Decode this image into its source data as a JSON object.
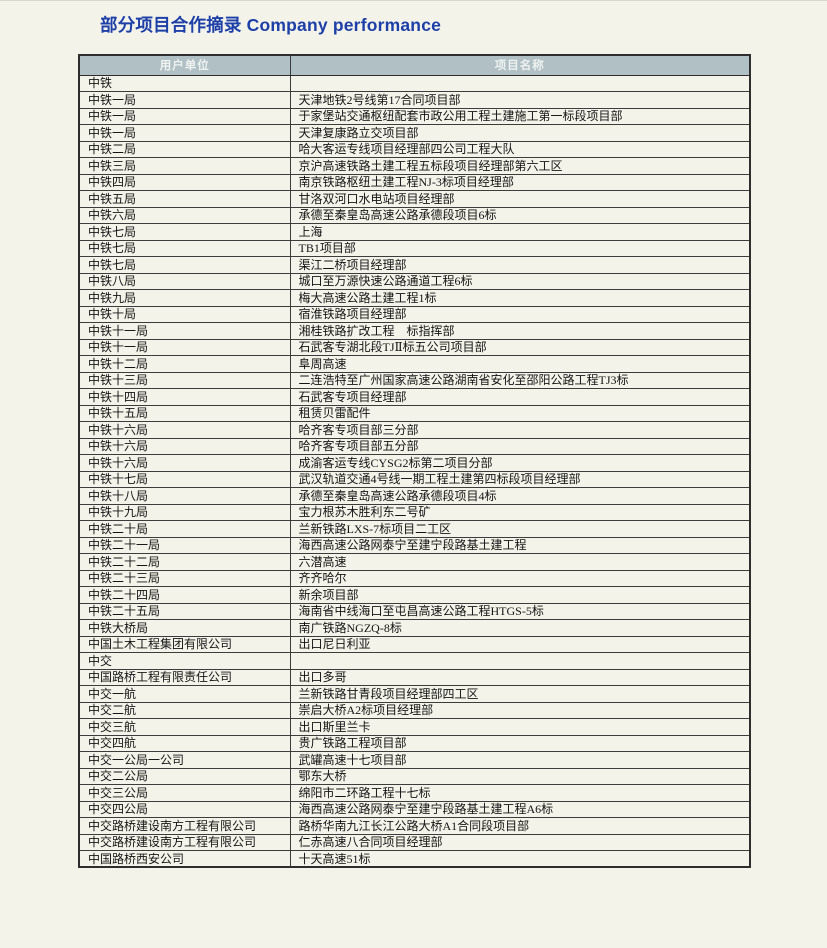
{
  "title": "部分项目合作摘录 Company performance",
  "colors": {
    "page_bg": "#f4f3ea",
    "title": "#1c3fa8",
    "header_bg": "#b1c0c4",
    "header_text": "#eef2f1",
    "border": "#2e2e2e"
  },
  "table": {
    "headers": [
      "用户单位",
      "项目名称"
    ],
    "rows": [
      [
        "中铁",
        ""
      ],
      [
        "中铁一局",
        "天津地铁2号线第17合同项目部"
      ],
      [
        "中铁一局",
        "于家堡站交通枢纽配套市政公用工程土建施工第一标段项目部"
      ],
      [
        "中铁一局",
        "天津复康路立交项目部"
      ],
      [
        "中铁二局",
        "哈大客运专线项目经理部四公司工程大队"
      ],
      [
        "中铁三局",
        "京沪高速铁路土建工程五标段项目经理部第六工区"
      ],
      [
        "中铁四局",
        "南京铁路枢纽土建工程NJ-3标项目经理部"
      ],
      [
        "中铁五局",
        "甘洛双河口水电站项目经理部"
      ],
      [
        "中铁六局",
        "承德至秦皇岛高速公路承德段项目6标"
      ],
      [
        "中铁七局",
        "上海"
      ],
      [
        "中铁七局",
        "TB1项目部"
      ],
      [
        "中铁七局",
        "渠江二桥项目经理部"
      ],
      [
        "中铁八局",
        "城口至万源快速公路通道工程6标"
      ],
      [
        "中铁九局",
        "梅大高速公路土建工程1标"
      ],
      [
        "中铁十局",
        "宿淮铁路项目经理部"
      ],
      [
        "中铁十一局",
        "湘桂铁路扩改工程　标指挥部"
      ],
      [
        "中铁十一局",
        "石武客专湖北段TJⅡ标五公司项目部"
      ],
      [
        "中铁十二局",
        "阜周高速"
      ],
      [
        "中铁十三局",
        "二连浩特至广州国家高速公路湖南省安化至邵阳公路工程TJ3标"
      ],
      [
        "中铁十四局",
        "石武客专项目经理部"
      ],
      [
        "中铁十五局",
        "租赁贝雷配件"
      ],
      [
        "中铁十六局",
        "哈齐客专项目部三分部"
      ],
      [
        "中铁十六局",
        "哈齐客专项目部五分部"
      ],
      [
        "中铁十六局",
        "成渝客运专线CYSG2标第二项目分部"
      ],
      [
        "中铁十七局",
        "武汉轨道交通4号线一期工程土建第四标段项目经理部"
      ],
      [
        "中铁十八局",
        "承德至秦皇岛高速公路承德段项目4标"
      ],
      [
        "中铁十九局",
        "宝力根苏木胜利东二号矿"
      ],
      [
        "中铁二十局",
        "兰新铁路LXS-7标项目二工区"
      ],
      [
        "中铁二十一局",
        "海西高速公路网泰宁至建宁段路基土建工程"
      ],
      [
        "中铁二十二局",
        "六潜高速"
      ],
      [
        "中铁二十三局",
        "齐齐哈尔"
      ],
      [
        "中铁二十四局",
        "新余项目部"
      ],
      [
        "中铁二十五局",
        "海南省中线海口至屯昌高速公路工程HTGS-5标"
      ],
      [
        "中铁大桥局",
        "南广铁路NGZQ-8标"
      ],
      [
        "中国土木工程集团有限公司",
        "出口尼日利亚"
      ],
      [
        "中交",
        ""
      ],
      [
        "中国路桥工程有限责任公司",
        "出口多哥"
      ],
      [
        "中交一航",
        "兰新铁路甘青段项目经理部四工区"
      ],
      [
        "中交二航",
        "崇启大桥A2标项目经理部"
      ],
      [
        "中交三航",
        "出口斯里兰卡"
      ],
      [
        "中交四航",
        "贵广铁路工程项目部"
      ],
      [
        "中交一公局一公司",
        "武罐高速十七项目部"
      ],
      [
        "中交二公局",
        "鄂东大桥"
      ],
      [
        "中交三公局",
        "绵阳市二环路工程十七标"
      ],
      [
        "中交四公局",
        "海西高速公路网泰宁至建宁段路基土建工程A6标"
      ],
      [
        "中交路桥建设南方工程有限公司",
        "路桥华南九江长江公路大桥A1合同段项目部"
      ],
      [
        "中交路桥建设南方工程有限公司",
        "仁赤高速八合同项目经理部"
      ],
      [
        "中国路桥西安公司",
        "十天高速51标"
      ]
    ]
  }
}
